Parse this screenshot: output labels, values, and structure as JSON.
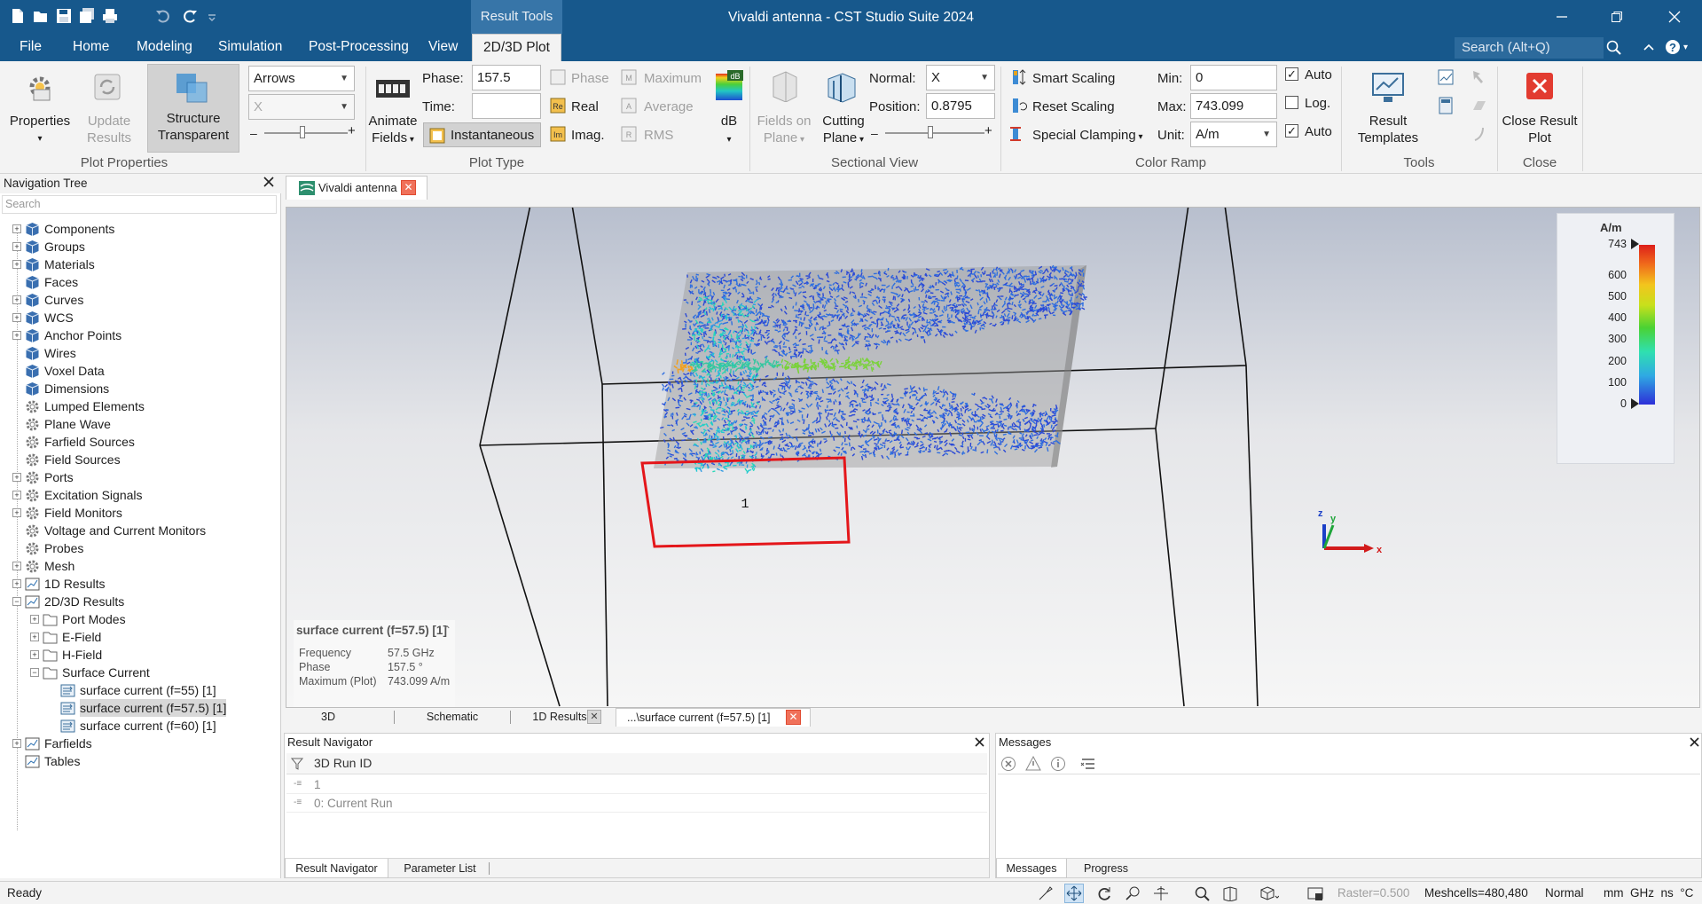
{
  "window": {
    "title": "Vivaldi antenna - CST Studio Suite 2024",
    "context_group": "Result Tools"
  },
  "quick_access": {
    "icons": [
      "new-icon",
      "open-icon",
      "save-icon",
      "save-all-icon",
      "print-icon",
      "undo-icon",
      "redo-icon",
      "customize-icon"
    ]
  },
  "menu": {
    "tabs": [
      "File",
      "Home",
      "Modeling",
      "Simulation",
      "Post-Processing",
      "View",
      "2D/3D Plot"
    ],
    "active": "2D/3D Plot",
    "search_placeholder": "Search (Alt+Q)"
  },
  "ribbon": {
    "plot_properties": {
      "label": "Plot Properties",
      "properties": "Properties",
      "update_results_1": "Update",
      "update_results_2": "Results",
      "structure_transparent_1": "Structure",
      "structure_transparent_2": "Transparent",
      "plot_mode": "Arrows",
      "component": "X"
    },
    "plot_type": {
      "label": "Plot Type",
      "animate_fields_1": "Animate",
      "animate_fields_2": "Fields",
      "phase_label": "Phase:",
      "phase_value": "157.5",
      "time_label": "Time:",
      "time_value": "",
      "instantaneous": "Instantaneous",
      "phase": "Phase",
      "real": "Real",
      "imag": "Imag.",
      "maximum": "Maximum",
      "average": "Average",
      "rms": "RMS",
      "db": "dB"
    },
    "sectional_view": {
      "label": "Sectional View",
      "fields_on_plane_1": "Fields on",
      "fields_on_plane_2": "Plane",
      "cutting_plane_1": "Cutting",
      "cutting_plane_2": "Plane",
      "normal_label": "Normal:",
      "normal_value": "X",
      "position_label": "Position:",
      "position_value": "0.8795"
    },
    "color_ramp": {
      "label": "Color Ramp",
      "smart_scaling": "Smart Scaling",
      "reset_scaling": "Reset Scaling",
      "special_clamping": "Special Clamping",
      "min_label": "Min:",
      "min_value": "0",
      "max_label": "Max:",
      "max_value": "743.099",
      "unit_label": "Unit:",
      "unit_value": "A/m",
      "auto1": "Auto",
      "log": "Log.",
      "auto2": "Auto",
      "auto1_checked": true,
      "log_checked": false,
      "auto2_checked": true
    },
    "tools": {
      "label": "Tools",
      "result_templates_1": "Result",
      "result_templates_2": "Templates"
    },
    "close": {
      "label": "Close",
      "close_result_plot_1": "Close Result",
      "close_result_plot_2": "Plot"
    }
  },
  "nav_tree": {
    "title": "Navigation Tree",
    "search_placeholder": "Search",
    "items": [
      {
        "label": "Components",
        "icon": "component-icon",
        "expandable": true,
        "level": 0
      },
      {
        "label": "Groups",
        "icon": "component-icon",
        "expandable": true,
        "level": 0
      },
      {
        "label": "Materials",
        "icon": "component-icon",
        "expandable": true,
        "level": 0
      },
      {
        "label": "Faces",
        "icon": "component-icon",
        "expandable": false,
        "level": 0
      },
      {
        "label": "Curves",
        "icon": "component-icon",
        "expandable": true,
        "level": 0
      },
      {
        "label": "WCS",
        "icon": "component-icon",
        "expandable": true,
        "level": 0
      },
      {
        "label": "Anchor Points",
        "icon": "component-icon",
        "expandable": true,
        "level": 0
      },
      {
        "label": "Wires",
        "icon": "component-icon",
        "expandable": false,
        "level": 0
      },
      {
        "label": "Voxel Data",
        "icon": "component-icon",
        "expandable": false,
        "level": 0
      },
      {
        "label": "Dimensions",
        "icon": "component-icon",
        "expandable": false,
        "level": 0
      },
      {
        "label": "Lumped Elements",
        "icon": "gear-icon",
        "expandable": false,
        "level": 0
      },
      {
        "label": "Plane Wave",
        "icon": "gear-icon",
        "expandable": false,
        "level": 0
      },
      {
        "label": "Farfield Sources",
        "icon": "gear-icon",
        "expandable": false,
        "level": 0
      },
      {
        "label": "Field Sources",
        "icon": "gear-icon",
        "expandable": false,
        "level": 0
      },
      {
        "label": "Ports",
        "icon": "gear-icon",
        "expandable": true,
        "level": 0
      },
      {
        "label": "Excitation Signals",
        "icon": "gear-icon",
        "expandable": true,
        "level": 0
      },
      {
        "label": "Field Monitors",
        "icon": "gear-icon",
        "expandable": true,
        "level": 0
      },
      {
        "label": "Voltage and Current Monitors",
        "icon": "gear-icon",
        "expandable": false,
        "level": 0
      },
      {
        "label": "Probes",
        "icon": "gear-icon",
        "expandable": false,
        "level": 0
      },
      {
        "label": "Mesh",
        "icon": "gear-icon",
        "expandable": true,
        "level": 0
      },
      {
        "label": "1D Results",
        "icon": "result-icon",
        "expandable": true,
        "level": 0
      },
      {
        "label": "2D/3D Results",
        "icon": "result-icon",
        "expandable": true,
        "expanded": true,
        "level": 0
      },
      {
        "label": "Port Modes",
        "icon": "folder-icon",
        "expandable": true,
        "level": 1
      },
      {
        "label": "E-Field",
        "icon": "folder-icon",
        "expandable": true,
        "level": 1
      },
      {
        "label": "H-Field",
        "icon": "folder-icon",
        "expandable": true,
        "level": 1
      },
      {
        "label": "Surface Current",
        "icon": "folder-icon",
        "expandable": true,
        "expanded": true,
        "level": 1
      },
      {
        "label": "surface current (f=55) [1]",
        "icon": "field-result-icon",
        "expandable": false,
        "level": 2
      },
      {
        "label": "surface current (f=57.5) [1]",
        "icon": "field-result-icon",
        "expandable": false,
        "level": 2,
        "selected": true
      },
      {
        "label": "surface current (f=60) [1]",
        "icon": "field-result-icon",
        "expandable": false,
        "level": 2
      },
      {
        "label": "Farfields",
        "icon": "result-icon",
        "expandable": true,
        "level": 0
      },
      {
        "label": "Tables",
        "icon": "result-icon",
        "expandable": false,
        "level": 0
      }
    ]
  },
  "document_tab": {
    "label": "Vivaldi antenna"
  },
  "viewport": {
    "port_label": "1",
    "legend": {
      "unit": "A/m",
      "max_label": "743",
      "ticks": [
        "600",
        "500",
        "400",
        "300",
        "200",
        "100",
        "0"
      ],
      "tick_values": [
        600,
        500,
        400,
        300,
        200,
        100,
        0
      ],
      "max_value": 743
    },
    "info": {
      "title": "surface current (f=57.5) [1]",
      "rows": [
        {
          "key": "Frequency",
          "value": "57.5 GHz"
        },
        {
          "key": "Phase",
          "value": "157.5 °"
        },
        {
          "key": "Maximum (Plot)",
          "value": "743.099 A/m"
        }
      ]
    },
    "axes": {
      "x": "x",
      "y": "y",
      "z": "z"
    }
  },
  "view_tabs": [
    "3D",
    "Schematic",
    "1D Results",
    "...\\surface current (f=57.5) [1]"
  ],
  "result_navigator": {
    "title": "Result Navigator",
    "header": "3D Run ID",
    "rows": [
      "1",
      "0: Current Run"
    ],
    "tabs": [
      "Result Navigator",
      "Parameter List"
    ]
  },
  "messages": {
    "title": "Messages",
    "tabs": [
      "Messages",
      "Progress"
    ]
  },
  "status": {
    "left": "Ready",
    "raster": "Raster=0.500",
    "meshcells": "Meshcells=480,480",
    "mode": "Normal",
    "units": "mm  GHz  ns  °C"
  }
}
